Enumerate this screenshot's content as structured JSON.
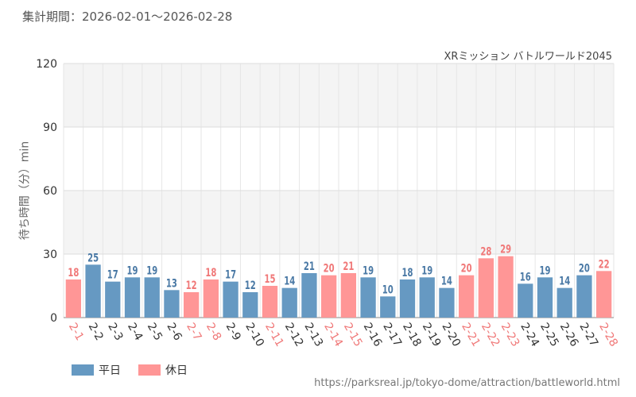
{
  "period_label": "集計期間：2026-02-01～2026-02-28",
  "source_url": "https://parksreal.jp/tokyo-dome/attraction/battleworld.html",
  "colors": {
    "weekday": "#6699c2",
    "holiday": "#ff9696",
    "weekday_text": "#4a79a5",
    "holiday_text": "#f07878",
    "axis_text": "#333333"
  },
  "chart_data": {
    "type": "bar",
    "title": "XRミッション バトルワールド2045",
    "ylabel": "待ち時間（分）min",
    "xlabel": "",
    "ylim": [
      0,
      120
    ],
    "yticks": [
      0,
      30,
      60,
      90,
      120
    ],
    "categories": [
      "2-1",
      "2-2",
      "2-3",
      "2-4",
      "2-5",
      "2-6",
      "2-7",
      "2-8",
      "2-9",
      "2-10",
      "2-11",
      "2-12",
      "2-13",
      "2-14",
      "2-15",
      "2-16",
      "2-17",
      "2-18",
      "2-19",
      "2-20",
      "2-21",
      "2-22",
      "2-23",
      "2-24",
      "2-25",
      "2-26",
      "2-27",
      "2-28"
    ],
    "values": [
      18,
      25,
      17,
      19,
      19,
      13,
      12,
      18,
      17,
      12,
      15,
      14,
      21,
      20,
      21,
      19,
      10,
      18,
      19,
      14,
      20,
      28,
      29,
      16,
      19,
      14,
      20,
      22
    ],
    "day_type": [
      "holiday",
      "weekday",
      "weekday",
      "weekday",
      "weekday",
      "weekday",
      "holiday",
      "holiday",
      "weekday",
      "weekday",
      "holiday",
      "weekday",
      "weekday",
      "holiday",
      "holiday",
      "weekday",
      "weekday",
      "weekday",
      "weekday",
      "weekday",
      "holiday",
      "holiday",
      "holiday",
      "weekday",
      "weekday",
      "weekday",
      "weekday",
      "holiday"
    ],
    "legend": [
      {
        "key": "weekday",
        "label": "平日"
      },
      {
        "key": "holiday",
        "label": "休日"
      }
    ]
  }
}
